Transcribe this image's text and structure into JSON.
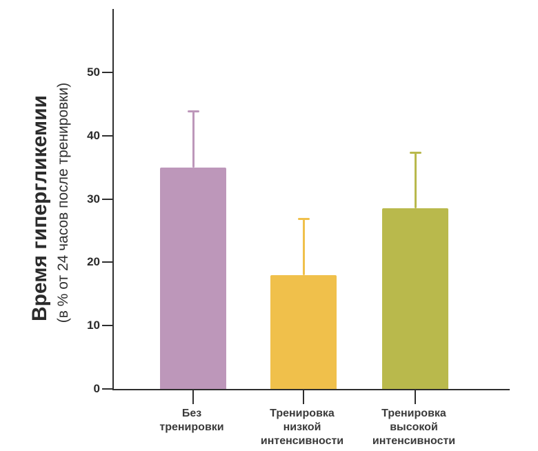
{
  "chart_data": {
    "type": "bar",
    "title": "",
    "xlabel": "",
    "ylabel": "Время гипергликемии",
    "ylabel_sub": "(в % от 24 часов после тренировки)",
    "yticks": [
      0,
      10,
      20,
      30,
      40,
      50
    ],
    "ylim": [
      0,
      60
    ],
    "grid": false,
    "legend": false,
    "categories": [
      "Без\nтренировки",
      "Тренировка\nнизкой\nинтенсивности",
      "Тренировка\nвысокой\nинтенсивности"
    ],
    "values": [
      35,
      18,
      28.5
    ],
    "error_top": [
      44,
      27,
      37.5
    ],
    "bar_colors": [
      "#bd97ba",
      "#f0c04b",
      "#b9b94c"
    ],
    "axis_color": "#2e2e2e",
    "label_color": "#3a3a3a"
  }
}
